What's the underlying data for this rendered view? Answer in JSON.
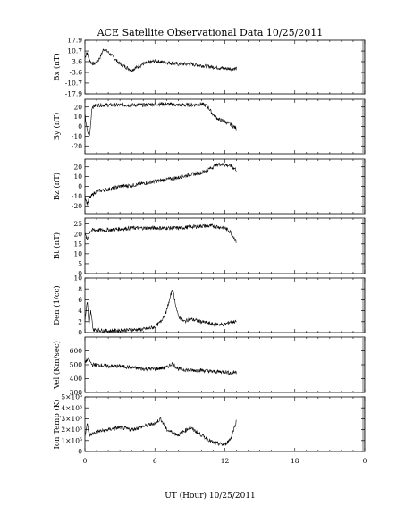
{
  "chart_data": {
    "type": "line",
    "title": "ACE Satellite Observational Data   10/25/2011",
    "xlabel": "UT (Hour)  10/25/2011",
    "xlim": [
      0,
      24
    ],
    "x_ticks": [
      "0",
      "6",
      "12",
      "18",
      "0"
    ],
    "data_end_hour": 13,
    "grid": false,
    "panels": [
      {
        "ylabel": "Bx (nT)",
        "ylim": [
          -17.9,
          17.9
        ],
        "yticks": [
          17.9,
          10.7,
          3.6,
          -3.6,
          -10.7,
          -17.9
        ],
        "ytick_labels": [
          "17.9",
          "10.7",
          "3.6",
          "-3.6",
          "-10.7",
          "-17.9"
        ],
        "series": [
          {
            "x": [
              0,
              0.15,
              0.3,
              0.5,
              0.8,
              1.2,
              1.6,
              2.0,
              2.5,
              3.0,
              3.5,
              4.0,
              5.0,
              6.0,
              7.0,
              8.0,
              9.0,
              10.0,
              11.0,
              12.0,
              12.5,
              13.0
            ],
            "values": [
              6,
              10,
              7,
              3,
              2,
              5,
              12,
              10,
              6,
              2,
              0,
              -2,
              2,
              4,
              3,
              2,
              2,
              1,
              0,
              -1,
              -1,
              -1
            ]
          }
        ]
      },
      {
        "ylabel": "By (nT)",
        "ylim": [
          -28,
          28
        ],
        "yticks": [
          20,
          10,
          0,
          -10,
          -20
        ],
        "ytick_labels": [
          "20",
          "10",
          "0",
          "-10",
          "-20"
        ],
        "series": [
          {
            "x": [
              0,
              0.2,
              0.4,
              0.6,
              1.0,
              2.0,
              3.0,
              4.0,
              5.0,
              6.0,
              7.0,
              8.0,
              9.0,
              10.0,
              10.5,
              11.0,
              11.5,
              12.0,
              12.5,
              13.0
            ],
            "values": [
              12,
              -5,
              -10,
              20,
              22,
              22,
              22,
              22,
              22,
              23,
              23,
              22,
              22,
              23,
              21,
              12,
              7,
              5,
              2,
              -2
            ]
          }
        ]
      },
      {
        "ylabel": "Bz (nT)",
        "ylim": [
          -28,
          28
        ],
        "yticks": [
          20,
          10,
          0,
          -10,
          -20
        ],
        "ytick_labels": [
          "20",
          "10",
          "0",
          "-10",
          "-20"
        ],
        "series": [
          {
            "x": [
              0,
              0.2,
              0.4,
              0.7,
              1.0,
              2.0,
              3.0,
              4.0,
              5.0,
              6.0,
              7.0,
              8.0,
              9.0,
              10.0,
              11.0,
              11.5,
              12.0,
              12.5,
              13.0
            ],
            "values": [
              -10,
              -18,
              -12,
              -8,
              -5,
              -3,
              0,
              1,
              3,
              5,
              7,
              9,
              12,
              14,
              20,
              23,
              22,
              21,
              17
            ]
          }
        ]
      },
      {
        "ylabel": "Bt (nT)",
        "ylim": [
          0,
          28
        ],
        "yticks": [
          25,
          20,
          15,
          10,
          5,
          0
        ],
        "ytick_labels": [
          "25",
          "20",
          "15",
          "10",
          "5",
          "0"
        ],
        "series": [
          {
            "x": [
              0,
              0.2,
              0.4,
              0.6,
              1.0,
              2.0,
              4.0,
              6.0,
              8.0,
              10.0,
              11.0,
              12.0,
              12.5,
              13.0
            ],
            "values": [
              20,
              17,
              21,
              22,
              22,
              22,
              23,
              23,
              23,
              24,
              24,
              23,
              21,
              16
            ]
          }
        ]
      },
      {
        "ylabel": "Den (1/cc)",
        "ylim": [
          0,
          10
        ],
        "yticks": [
          10,
          8,
          6,
          4,
          2,
          0
        ],
        "ytick_labels": [
          "10",
          "8",
          "6",
          "4",
          "2",
          "0"
        ],
        "series": [
          {
            "x": [
              0,
              0.2,
              0.35,
              0.5,
              0.7,
              1.0,
              2.0,
              3.0,
              4.0,
              5.0,
              6.0,
              6.5,
              7.0,
              7.5,
              8.0,
              8.5,
              9.0,
              10.0,
              11.0,
              12.0,
              12.5,
              13.0
            ],
            "values": [
              2,
              6,
              1,
              4,
              0.5,
              0.5,
              0.3,
              0.4,
              0.5,
              0.6,
              1,
              2,
              4,
              8,
              3,
              2,
              2.5,
              2,
              1.5,
              1.5,
              2,
              2
            ]
          }
        ]
      },
      {
        "ylabel": "Vel (Km/sec)",
        "ylim": [
          300,
          700
        ],
        "yticks": [
          600,
          500,
          400,
          300
        ],
        "ytick_labels": [
          "600",
          "500",
          "400",
          "300"
        ],
        "series": [
          {
            "x": [
              0,
              0.3,
              0.6,
              1.0,
              2.0,
              3.0,
              4.0,
              5.0,
              6.0,
              7.0,
              7.5,
              8.0,
              9.0,
              10.0,
              11.0,
              12.0,
              12.5,
              13.0
            ],
            "values": [
              520,
              540,
              500,
              500,
              490,
              490,
              480,
              470,
              470,
              480,
              510,
              470,
              460,
              460,
              450,
              450,
              440,
              450
            ]
          }
        ]
      },
      {
        "ylabel": "Ion Temp (K)",
        "ylim": [
          0,
          500000
        ],
        "yticks": [
          500000,
          400000,
          300000,
          200000,
          100000,
          0
        ],
        "ytick_labels": [
          "5×10⁵",
          "4×10⁵",
          "3×10⁵",
          "2×10⁵",
          "1×10⁵",
          "0"
        ],
        "series": [
          {
            "x": [
              0,
              0.2,
              0.4,
              1.0,
              2.0,
              3.0,
              4.0,
              5.0,
              6.0,
              6.5,
              7.0,
              8.0,
              9.0,
              10.0,
              11.0,
              12.0,
              12.5,
              13.0
            ],
            "values": [
              150000,
              250000,
              150000,
              180000,
              200000,
              220000,
              200000,
              230000,
              260000,
              300000,
              200000,
              150000,
              220000,
              150000,
              80000,
              60000,
              120000,
              280000
            ]
          }
        ]
      }
    ]
  }
}
